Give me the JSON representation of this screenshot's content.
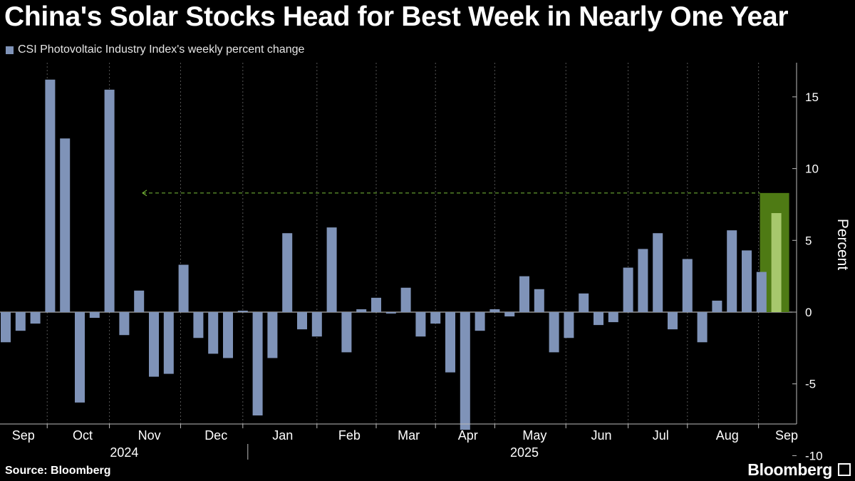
{
  "title": "China's Solar Stocks Head for Best Week in Nearly One Year",
  "legend": {
    "label": "CSI Photovoltaic Industry Index's weekly percent change",
    "color": "#7f93b8"
  },
  "source": "Source: Bloomberg",
  "brand": "Bloomberg",
  "colors": {
    "bar": "#7f93b8",
    "highlight_bar": "#a7c86c",
    "highlight_box": "#4e7a14",
    "arrow": "#7bbf3a",
    "grid": "#555555",
    "axis": "#bbbbbb"
  },
  "chart_data": {
    "type": "bar",
    "ylabel": "Percent",
    "ylim": [
      -10.5,
      18
    ],
    "yticks": [
      15,
      10,
      5,
      0,
      -5,
      -10
    ],
    "grid": "dotted vertical",
    "legend_position": "top-left",
    "month_labels": [
      "Sep",
      "Oct",
      "Nov",
      "Dec",
      "Jan",
      "Feb",
      "Mar",
      "Apr",
      "May",
      "Jun",
      "Jul",
      "Aug",
      "Sep"
    ],
    "month_label_bars": [
      1,
      5,
      9.5,
      14,
      18.5,
      23,
      27,
      31,
      35.5,
      40,
      44,
      48.5,
      52.5
    ],
    "month_boundary_bars": [
      2.8,
      7,
      11.8,
      16,
      21,
      25,
      29,
      33,
      37.8,
      42,
      46,
      50.8
    ],
    "years": [
      "2024",
      "2025"
    ],
    "year_label_bars": [
      8,
      35
    ],
    "year_boundary_bar": 16,
    "series": [
      {
        "values": [
          -2.1,
          -1.3,
          -0.8,
          16.2,
          12.1,
          -6.3,
          -0.4,
          15.5,
          -1.6,
          1.5,
          -4.5,
          -4.3,
          3.3,
          -1.8,
          -2.9,
          -3.2,
          0.1,
          -7.2,
          -3.2,
          5.5,
          -1.2,
          -1.7,
          5.9,
          -2.8,
          0.2,
          1.0,
          -0.1,
          1.7,
          -1.7,
          -0.8,
          -4.2,
          -8.2,
          -1.3,
          0.2,
          -0.3,
          2.5,
          1.6,
          -2.8,
          -1.8,
          1.3,
          -0.9,
          -0.7,
          3.1,
          4.4,
          5.5,
          -1.2,
          3.7,
          -2.1,
          0.8,
          5.7,
          4.3,
          2.8,
          6.9
        ]
      }
    ],
    "highlight": {
      "bar_index": 52,
      "reference_value": 8.3
    }
  }
}
